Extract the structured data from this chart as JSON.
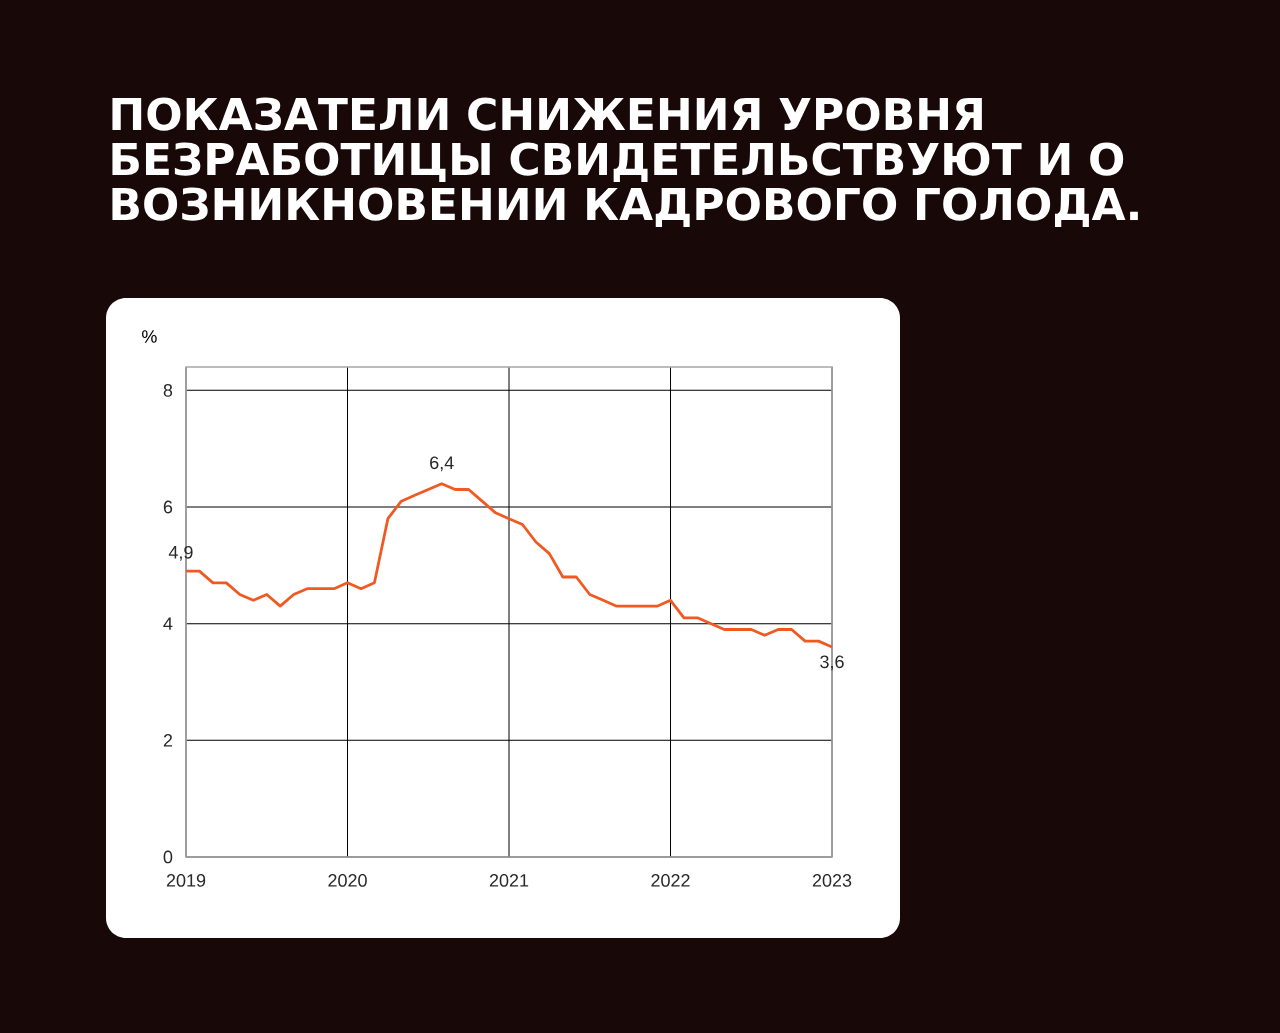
{
  "chart_data": {
    "type": "line",
    "title": "ПОКАЗАТЕЛИ СНИЖЕНИЯ УРОВНЯ БЕЗРАБОТИЦЫ СВИДЕТЕЛЬСТВУЮТ И О ВОЗНИКНОВЕНИИ КАДРОВОГО ГОЛОДА.",
    "ylabel": "%",
    "x": [
      "2019-01",
      "2019-02",
      "2019-03",
      "2019-04",
      "2019-05",
      "2019-06",
      "2019-07",
      "2019-08",
      "2019-09",
      "2019-10",
      "2019-11",
      "2019-12",
      "2020-01",
      "2020-02",
      "2020-03",
      "2020-04",
      "2020-05",
      "2020-06",
      "2020-07",
      "2020-08",
      "2020-09",
      "2020-10",
      "2020-11",
      "2020-12",
      "2021-01",
      "2021-02",
      "2021-03",
      "2021-04",
      "2021-05",
      "2021-06",
      "2021-07",
      "2021-08",
      "2021-09",
      "2021-10",
      "2021-11",
      "2021-12",
      "2022-01",
      "2022-02",
      "2022-03",
      "2022-04",
      "2022-05",
      "2022-06",
      "2022-07",
      "2022-08",
      "2022-09",
      "2022-10",
      "2022-11",
      "2022-12",
      "2023-01"
    ],
    "series": [
      {
        "color": "#f05a22",
        "values": [
          4.9,
          4.9,
          4.7,
          4.7,
          4.5,
          4.4,
          4.5,
          4.3,
          4.5,
          4.6,
          4.6,
          4.6,
          4.7,
          4.6,
          4.7,
          5.8,
          6.1,
          6.2,
          6.3,
          6.4,
          6.3,
          6.3,
          6.1,
          5.9,
          5.8,
          5.7,
          5.4,
          5.2,
          4.8,
          4.8,
          4.5,
          4.4,
          4.3,
          4.3,
          4.3,
          4.3,
          4.4,
          4.1,
          4.1,
          4.0,
          3.9,
          3.9,
          3.9,
          3.8,
          3.9,
          3.9,
          3.7,
          3.7,
          3.6
        ],
        "value_labels": [
          "4,9",
          null,
          null,
          null,
          null,
          null,
          null,
          null,
          null,
          null,
          null,
          null,
          null,
          null,
          null,
          null,
          null,
          null,
          null,
          "6,4",
          null,
          null,
          null,
          null,
          null,
          null,
          null,
          null,
          null,
          null,
          null,
          null,
          null,
          null,
          null,
          null,
          null,
          null,
          null,
          null,
          null,
          null,
          null,
          null,
          null,
          null,
          null,
          null,
          "3,6"
        ]
      }
    ],
    "xlim": [
      "2019-01",
      "2023-01"
    ],
    "xticks": [
      "2019",
      "2020",
      "2021",
      "2022",
      "2023"
    ],
    "ylim": [
      0,
      8.4
    ],
    "yticks": [
      0,
      2,
      4,
      6,
      8
    ],
    "grid": true,
    "line_style": "solid"
  }
}
